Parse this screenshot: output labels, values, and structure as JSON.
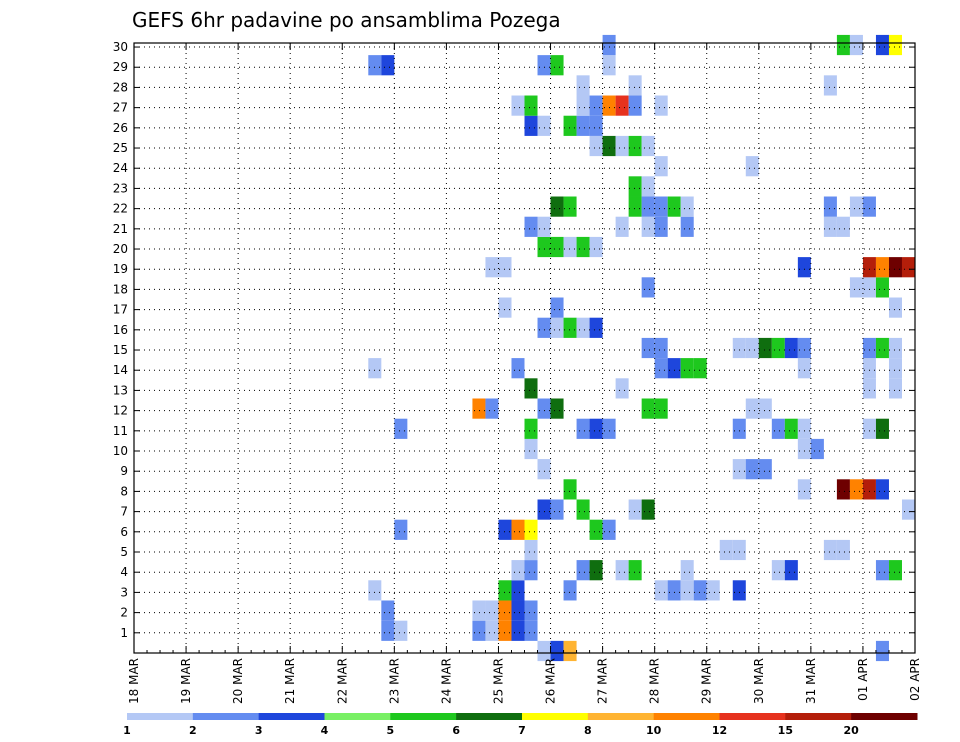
{
  "chart_data": {
    "type": "heatmap",
    "title": "GEFS 6hr padavine po ansamblima Pozega",
    "x_tick_labels": [
      "18 MAR",
      "19 MAR",
      "20 MAR",
      "21 MAR",
      "22 MAR",
      "23 MAR",
      "24 MAR",
      "25 MAR",
      "26 MAR",
      "27 MAR",
      "28 MAR",
      "29 MAR",
      "30 MAR",
      "31 MAR",
      "01 APR",
      "02 APR"
    ],
    "y_tick_labels": [
      "1",
      "2",
      "3",
      "4",
      "5",
      "6",
      "7",
      "8",
      "9",
      "10",
      "11",
      "12",
      "13",
      "14",
      "15",
      "16",
      "17",
      "18",
      "19",
      "20",
      "21",
      "22",
      "23",
      "24",
      "25",
      "26",
      "27",
      "28",
      "29",
      "30"
    ],
    "x_range_days": [
      0,
      15
    ],
    "x_step_days": 0.25,
    "y_range": [
      0,
      30
    ],
    "grid": true,
    "legend_position": "bottom",
    "color_levels": [
      1,
      2,
      3,
      4,
      5,
      6,
      7,
      8,
      10,
      12,
      15,
      20
    ],
    "color_level_labels": [
      "1",
      "2",
      "3",
      "4",
      "5",
      "6",
      "7",
      "8",
      "10",
      "12",
      "15",
      "20"
    ],
    "colors": [
      "#b4c8f5",
      "#648cf0",
      "#1e46dc",
      "#78f064",
      "#1ec81e",
      "#0f6e0f",
      "#ffff00",
      "#ffb432",
      "#ff8200",
      "#e6321e",
      "#b41e0a",
      "#6e0000"
    ],
    "cells": [
      {
        "m": 0,
        "d": 7.75,
        "v": 1
      },
      {
        "m": 0,
        "d": 8.0,
        "v": 3
      },
      {
        "m": 0,
        "d": 8.25,
        "v": 8
      },
      {
        "m": 0,
        "d": 14.25,
        "v": 2
      },
      {
        "m": 1,
        "d": 4.75,
        "v": 2
      },
      {
        "m": 1,
        "d": 5.0,
        "v": 1
      },
      {
        "m": 1,
        "d": 6.5,
        "v": 2
      },
      {
        "m": 1,
        "d": 6.75,
        "v": 1
      },
      {
        "m": 1,
        "d": 7.0,
        "v": 10
      },
      {
        "m": 1,
        "d": 7.25,
        "v": 3
      },
      {
        "m": 1,
        "d": 7.5,
        "v": 2
      },
      {
        "m": 2,
        "d": 4.75,
        "v": 2
      },
      {
        "m": 2,
        "d": 6.5,
        "v": 1
      },
      {
        "m": 2,
        "d": 6.75,
        "v": 1
      },
      {
        "m": 2,
        "d": 7.0,
        "v": 10
      },
      {
        "m": 2,
        "d": 7.25,
        "v": 3
      },
      {
        "m": 2,
        "d": 7.5,
        "v": 2
      },
      {
        "m": 3,
        "d": 4.5,
        "v": 1
      },
      {
        "m": 3,
        "d": 7.0,
        "v": 5
      },
      {
        "m": 3,
        "d": 7.25,
        "v": 3
      },
      {
        "m": 3,
        "d": 8.25,
        "v": 2
      },
      {
        "m": 3,
        "d": 10.0,
        "v": 1
      },
      {
        "m": 3,
        "d": 10.25,
        "v": 2
      },
      {
        "m": 3,
        "d": 10.5,
        "v": 1
      },
      {
        "m": 3,
        "d": 10.75,
        "v": 2
      },
      {
        "m": 3,
        "d": 11.0,
        "v": 1
      },
      {
        "m": 3,
        "d": 11.5,
        "v": 3
      },
      {
        "m": 4,
        "d": 7.25,
        "v": 1
      },
      {
        "m": 4,
        "d": 7.5,
        "v": 2
      },
      {
        "m": 4,
        "d": 8.5,
        "v": 2
      },
      {
        "m": 4,
        "d": 8.75,
        "v": 6
      },
      {
        "m": 4,
        "d": 9.25,
        "v": 1
      },
      {
        "m": 4,
        "d": 9.5,
        "v": 5
      },
      {
        "m": 4,
        "d": 10.5,
        "v": 1
      },
      {
        "m": 4,
        "d": 12.25,
        "v": 1
      },
      {
        "m": 4,
        "d": 12.5,
        "v": 3
      },
      {
        "m": 4,
        "d": 14.25,
        "v": 2
      },
      {
        "m": 4,
        "d": 14.5,
        "v": 5
      },
      {
        "m": 5,
        "d": 7.5,
        "v": 1
      },
      {
        "m": 5,
        "d": 11.25,
        "v": 1
      },
      {
        "m": 5,
        "d": 11.5,
        "v": 1
      },
      {
        "m": 5,
        "d": 13.25,
        "v": 1
      },
      {
        "m": 5,
        "d": 13.5,
        "v": 1
      },
      {
        "m": 6,
        "d": 5.0,
        "v": 2
      },
      {
        "m": 6,
        "d": 7.0,
        "v": 3
      },
      {
        "m": 6,
        "d": 7.25,
        "v": 10
      },
      {
        "m": 6,
        "d": 7.5,
        "v": 7
      },
      {
        "m": 6,
        "d": 8.75,
        "v": 5
      },
      {
        "m": 6,
        "d": 9.0,
        "v": 2
      },
      {
        "m": 7,
        "d": 7.75,
        "v": 3
      },
      {
        "m": 7,
        "d": 8.0,
        "v": 2
      },
      {
        "m": 7,
        "d": 8.5,
        "v": 5
      },
      {
        "m": 7,
        "d": 9.5,
        "v": 1
      },
      {
        "m": 7,
        "d": 9.75,
        "v": 6
      },
      {
        "m": 7,
        "d": 14.75,
        "v": 1
      },
      {
        "m": 8,
        "d": 8.25,
        "v": 5
      },
      {
        "m": 8,
        "d": 12.75,
        "v": 1
      },
      {
        "m": 8,
        "d": 13.5,
        "v": 20
      },
      {
        "m": 8,
        "d": 13.75,
        "v": 10
      },
      {
        "m": 8,
        "d": 14.0,
        "v": 15
      },
      {
        "m": 8,
        "d": 14.25,
        "v": 3
      },
      {
        "m": 9,
        "d": 7.75,
        "v": 1
      },
      {
        "m": 9,
        "d": 11.5,
        "v": 1
      },
      {
        "m": 9,
        "d": 11.75,
        "v": 2
      },
      {
        "m": 9,
        "d": 12.0,
        "v": 2
      },
      {
        "m": 10,
        "d": 7.5,
        "v": 1
      },
      {
        "m": 10,
        "d": 12.75,
        "v": 1
      },
      {
        "m": 10,
        "d": 13.0,
        "v": 2
      },
      {
        "m": 11,
        "d": 5.0,
        "v": 2
      },
      {
        "m": 11,
        "d": 7.5,
        "v": 5
      },
      {
        "m": 11,
        "d": 8.5,
        "v": 2
      },
      {
        "m": 11,
        "d": 8.75,
        "v": 3
      },
      {
        "m": 11,
        "d": 9.0,
        "v": 2
      },
      {
        "m": 11,
        "d": 11.5,
        "v": 2
      },
      {
        "m": 11,
        "d": 12.25,
        "v": 2
      },
      {
        "m": 11,
        "d": 12.5,
        "v": 5
      },
      {
        "m": 11,
        "d": 12.75,
        "v": 1
      },
      {
        "m": 11,
        "d": 14.0,
        "v": 1
      },
      {
        "m": 11,
        "d": 14.25,
        "v": 6
      },
      {
        "m": 12,
        "d": 6.5,
        "v": 10
      },
      {
        "m": 12,
        "d": 6.75,
        "v": 2
      },
      {
        "m": 12,
        "d": 7.75,
        "v": 2
      },
      {
        "m": 12,
        "d": 8.0,
        "v": 6
      },
      {
        "m": 12,
        "d": 9.75,
        "v": 5
      },
      {
        "m": 12,
        "d": 10.0,
        "v": 5
      },
      {
        "m": 12,
        "d": 11.75,
        "v": 1
      },
      {
        "m": 12,
        "d": 12.0,
        "v": 1
      },
      {
        "m": 13,
        "d": 7.5,
        "v": 6
      },
      {
        "m": 13,
        "d": 9.25,
        "v": 1
      },
      {
        "m": 13,
        "d": 14.0,
        "v": 1
      },
      {
        "m": 13,
        "d": 14.5,
        "v": 1
      },
      {
        "m": 14,
        "d": 4.5,
        "v": 1
      },
      {
        "m": 14,
        "d": 7.25,
        "v": 2
      },
      {
        "m": 14,
        "d": 10.0,
        "v": 2
      },
      {
        "m": 14,
        "d": 10.25,
        "v": 3
      },
      {
        "m": 14,
        "d": 10.5,
        "v": 5
      },
      {
        "m": 14,
        "d": 10.75,
        "v": 5
      },
      {
        "m": 14,
        "d": 12.75,
        "v": 1
      },
      {
        "m": 14,
        "d": 14.0,
        "v": 1
      },
      {
        "m": 14,
        "d": 14.5,
        "v": 1
      },
      {
        "m": 15,
        "d": 9.75,
        "v": 2
      },
      {
        "m": 15,
        "d": 10.0,
        "v": 2
      },
      {
        "m": 15,
        "d": 11.5,
        "v": 1
      },
      {
        "m": 15,
        "d": 11.75,
        "v": 1
      },
      {
        "m": 15,
        "d": 12.0,
        "v": 6
      },
      {
        "m": 15,
        "d": 12.25,
        "v": 5
      },
      {
        "m": 15,
        "d": 12.5,
        "v": 3
      },
      {
        "m": 15,
        "d": 12.75,
        "v": 2
      },
      {
        "m": 15,
        "d": 14.0,
        "v": 2
      },
      {
        "m": 15,
        "d": 14.25,
        "v": 5
      },
      {
        "m": 15,
        "d": 14.5,
        "v": 1
      },
      {
        "m": 16,
        "d": 7.75,
        "v": 2
      },
      {
        "m": 16,
        "d": 8.0,
        "v": 1
      },
      {
        "m": 16,
        "d": 8.25,
        "v": 5
      },
      {
        "m": 16,
        "d": 8.5,
        "v": 1
      },
      {
        "m": 16,
        "d": 8.75,
        "v": 3
      },
      {
        "m": 17,
        "d": 7.0,
        "v": 1
      },
      {
        "m": 17,
        "d": 8.0,
        "v": 2
      },
      {
        "m": 17,
        "d": 14.5,
        "v": 1
      },
      {
        "m": 18,
        "d": 9.75,
        "v": 2
      },
      {
        "m": 18,
        "d": 13.75,
        "v": 1
      },
      {
        "m": 18,
        "d": 14.0,
        "v": 1
      },
      {
        "m": 18,
        "d": 14.25,
        "v": 5
      },
      {
        "m": 19,
        "d": 6.75,
        "v": 1
      },
      {
        "m": 19,
        "d": 7.0,
        "v": 1
      },
      {
        "m": 19,
        "d": 12.75,
        "v": 3
      },
      {
        "m": 19,
        "d": 14.0,
        "v": 15
      },
      {
        "m": 19,
        "d": 14.25,
        "v": 10
      },
      {
        "m": 19,
        "d": 14.5,
        "v": 20
      },
      {
        "m": 19,
        "d": 14.75,
        "v": 15
      },
      {
        "m": 20,
        "d": 7.75,
        "v": 5
      },
      {
        "m": 20,
        "d": 8.0,
        "v": 5
      },
      {
        "m": 20,
        "d": 8.25,
        "v": 1
      },
      {
        "m": 20,
        "d": 8.5,
        "v": 5
      },
      {
        "m": 20,
        "d": 8.75,
        "v": 1
      },
      {
        "m": 21,
        "d": 7.5,
        "v": 2
      },
      {
        "m": 21,
        "d": 7.75,
        "v": 1
      },
      {
        "m": 21,
        "d": 9.25,
        "v": 1
      },
      {
        "m": 21,
        "d": 9.75,
        "v": 1
      },
      {
        "m": 21,
        "d": 10.0,
        "v": 2
      },
      {
        "m": 21,
        "d": 10.5,
        "v": 2
      },
      {
        "m": 21,
        "d": 13.25,
        "v": 1
      },
      {
        "m": 21,
        "d": 13.5,
        "v": 1
      },
      {
        "m": 22,
        "d": 8.0,
        "v": 6
      },
      {
        "m": 22,
        "d": 8.25,
        "v": 5
      },
      {
        "m": 22,
        "d": 9.5,
        "v": 5
      },
      {
        "m": 22,
        "d": 9.75,
        "v": 2
      },
      {
        "m": 22,
        "d": 10.0,
        "v": 2
      },
      {
        "m": 22,
        "d": 10.25,
        "v": 5
      },
      {
        "m": 22,
        "d": 10.5,
        "v": 1
      },
      {
        "m": 22,
        "d": 13.25,
        "v": 2
      },
      {
        "m": 22,
        "d": 13.75,
        "v": 1
      },
      {
        "m": 22,
        "d": 14.0,
        "v": 2
      },
      {
        "m": 23,
        "d": 9.5,
        "v": 5
      },
      {
        "m": 23,
        "d": 9.75,
        "v": 1
      },
      {
        "m": 24,
        "d": 10.0,
        "v": 1
      },
      {
        "m": 24,
        "d": 11.75,
        "v": 1
      },
      {
        "m": 25,
        "d": 8.75,
        "v": 1
      },
      {
        "m": 25,
        "d": 9.0,
        "v": 6
      },
      {
        "m": 25,
        "d": 9.25,
        "v": 1
      },
      {
        "m": 25,
        "d": 9.5,
        "v": 5
      },
      {
        "m": 25,
        "d": 9.75,
        "v": 1
      },
      {
        "m": 26,
        "d": 7.5,
        "v": 3
      },
      {
        "m": 26,
        "d": 7.75,
        "v": 1
      },
      {
        "m": 26,
        "d": 8.25,
        "v": 5
      },
      {
        "m": 26,
        "d": 8.5,
        "v": 2
      },
      {
        "m": 26,
        "d": 8.75,
        "v": 2
      },
      {
        "m": 27,
        "d": 7.25,
        "v": 1
      },
      {
        "m": 27,
        "d": 7.5,
        "v": 5
      },
      {
        "m": 27,
        "d": 8.5,
        "v": 1
      },
      {
        "m": 27,
        "d": 8.75,
        "v": 2
      },
      {
        "m": 27,
        "d": 9.0,
        "v": 10
      },
      {
        "m": 27,
        "d": 9.25,
        "v": 12
      },
      {
        "m": 27,
        "d": 9.5,
        "v": 2
      },
      {
        "m": 27,
        "d": 10.0,
        "v": 1
      },
      {
        "m": 28,
        "d": 8.5,
        "v": 1
      },
      {
        "m": 28,
        "d": 9.5,
        "v": 1
      },
      {
        "m": 28,
        "d": 13.25,
        "v": 1
      },
      {
        "m": 29,
        "d": 4.5,
        "v": 2
      },
      {
        "m": 29,
        "d": 4.75,
        "v": 3
      },
      {
        "m": 29,
        "d": 7.75,
        "v": 2
      },
      {
        "m": 29,
        "d": 8.0,
        "v": 5
      },
      {
        "m": 29,
        "d": 9.0,
        "v": 1
      },
      {
        "m": 30,
        "d": 9.0,
        "v": 2
      },
      {
        "m": 30,
        "d": 13.5,
        "v": 5
      },
      {
        "m": 30,
        "d": 13.75,
        "v": 1
      },
      {
        "m": 30,
        "d": 14.25,
        "v": 3
      },
      {
        "m": 30,
        "d": 14.5,
        "v": 7
      }
    ]
  }
}
